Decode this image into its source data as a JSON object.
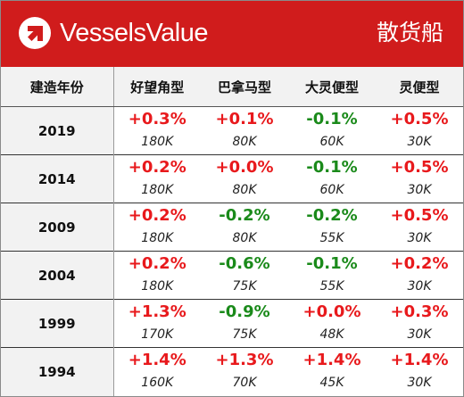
{
  "header": {
    "brand": "VesselsValue",
    "logo_icon": "vesselsvalue-logo-icon",
    "category": "散货船",
    "background_color": "#d01c1c"
  },
  "table": {
    "columns": [
      "建造年份",
      "好望角型",
      "巴拿马型",
      "大灵便型",
      "灵便型"
    ],
    "rows": [
      {
        "year": "2019",
        "cells": [
          {
            "change": "+0.3%",
            "size": "180K",
            "trend": "up"
          },
          {
            "change": "+0.1%",
            "size": "80K",
            "trend": "up"
          },
          {
            "change": "-0.1%",
            "size": "60K",
            "trend": "down"
          },
          {
            "change": "+0.5%",
            "size": "30K",
            "trend": "up"
          }
        ]
      },
      {
        "year": "2014",
        "cells": [
          {
            "change": "+0.2%",
            "size": "180K",
            "trend": "up"
          },
          {
            "change": "+0.0%",
            "size": "80K",
            "trend": "up"
          },
          {
            "change": "-0.1%",
            "size": "60K",
            "trend": "down"
          },
          {
            "change": "+0.5%",
            "size": "30K",
            "trend": "up"
          }
        ]
      },
      {
        "year": "2009",
        "cells": [
          {
            "change": "+0.2%",
            "size": "180K",
            "trend": "up"
          },
          {
            "change": "-0.2%",
            "size": "80K",
            "trend": "down"
          },
          {
            "change": "-0.2%",
            "size": "55K",
            "trend": "down"
          },
          {
            "change": "+0.5%",
            "size": "30K",
            "trend": "up"
          }
        ]
      },
      {
        "year": "2004",
        "cells": [
          {
            "change": "+0.2%",
            "size": "180K",
            "trend": "up"
          },
          {
            "change": "-0.6%",
            "size": "75K",
            "trend": "down"
          },
          {
            "change": "-0.1%",
            "size": "55K",
            "trend": "down"
          },
          {
            "change": "+0.2%",
            "size": "30K",
            "trend": "up"
          }
        ]
      },
      {
        "year": "1999",
        "cells": [
          {
            "change": "+1.3%",
            "size": "170K",
            "trend": "up"
          },
          {
            "change": "-0.9%",
            "size": "75K",
            "trend": "down"
          },
          {
            "change": "+0.0%",
            "size": "48K",
            "trend": "up"
          },
          {
            "change": "+0.3%",
            "size": "30K",
            "trend": "up"
          }
        ]
      },
      {
        "year": "1994",
        "cells": [
          {
            "change": "+1.4%",
            "size": "160K",
            "trend": "up"
          },
          {
            "change": "+1.3%",
            "size": "70K",
            "trend": "up"
          },
          {
            "change": "+1.4%",
            "size": "45K",
            "trend": "up"
          },
          {
            "change": "+1.4%",
            "size": "30K",
            "trend": "up"
          }
        ]
      }
    ],
    "colors": {
      "up": "#e8191c",
      "down": "#1a8a1a"
    }
  }
}
